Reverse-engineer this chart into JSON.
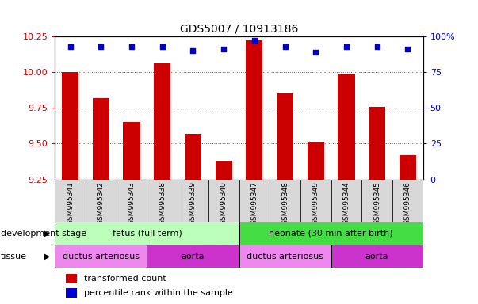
{
  "title": "GDS5007 / 10913186",
  "samples": [
    "GSM995341",
    "GSM995342",
    "GSM995343",
    "GSM995338",
    "GSM995339",
    "GSM995340",
    "GSM995347",
    "GSM995348",
    "GSM995349",
    "GSM995344",
    "GSM995345",
    "GSM995346"
  ],
  "transformed_counts": [
    10.0,
    9.82,
    9.65,
    10.06,
    9.57,
    9.38,
    10.22,
    9.85,
    9.51,
    9.99,
    9.76,
    9.42
  ],
  "percentile_ranks": [
    93,
    93,
    93,
    93,
    90,
    91,
    97,
    93,
    89,
    93,
    93,
    91
  ],
  "ylim_left": [
    9.25,
    10.25
  ],
  "ylim_right": [
    0,
    100
  ],
  "yticks_left": [
    9.25,
    9.5,
    9.75,
    10.0,
    10.25
  ],
  "yticks_right": [
    0,
    25,
    50,
    75,
    100
  ],
  "bar_color": "#cc0000",
  "scatter_color": "#0000cc",
  "bar_width": 0.55,
  "development_stage_groups": [
    {
      "label": "fetus (full term)",
      "start": 0,
      "end": 5,
      "color": "#bbffbb"
    },
    {
      "label": "neonate (30 min after birth)",
      "start": 6,
      "end": 11,
      "color": "#44dd44"
    }
  ],
  "tissue_groups": [
    {
      "label": "ductus arteriosus",
      "start": 0,
      "end": 2,
      "color": "#ee88ee"
    },
    {
      "label": "aorta",
      "start": 3,
      "end": 5,
      "color": "#cc33cc"
    },
    {
      "label": "ductus arteriosus",
      "start": 6,
      "end": 8,
      "color": "#ee88ee"
    },
    {
      "label": "aorta",
      "start": 9,
      "end": 11,
      "color": "#cc33cc"
    }
  ],
  "dev_stage_label": "development stage",
  "tissue_label": "tissue",
  "legend_items": [
    {
      "label": "transformed count",
      "color": "#cc0000"
    },
    {
      "label": "percentile rank within the sample",
      "color": "#0000cc"
    }
  ],
  "grid_color": "#555555",
  "plot_bg_color": "#ffffff",
  "tick_color_left": "#cc0000",
  "tick_color_right": "#0000cc",
  "title_fontsize": 10,
  "axis_fontsize": 8,
  "sample_fontsize": 6.5,
  "annot_fontsize": 8,
  "legend_fontsize": 8
}
